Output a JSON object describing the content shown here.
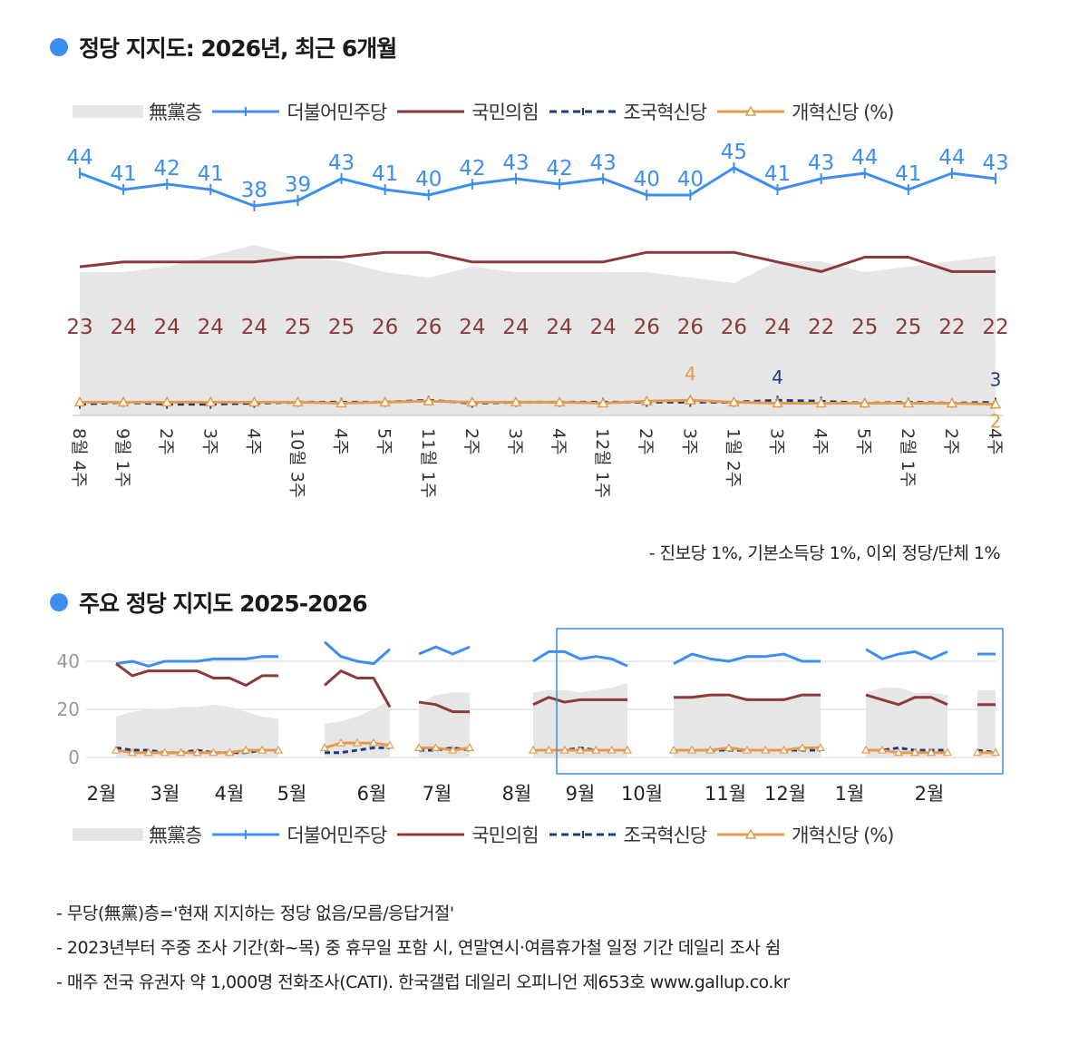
{
  "title1": "정당 지지도: 2026년, 최근 6개월",
  "title2": "주요 정당 지지도 2025-2026",
  "legend": {
    "none": "無黨층",
    "dem": "더불어민주당",
    "ppp": "국민의힘",
    "rebuild": "조국혁신당",
    "reform": "개혁신당 (%)"
  },
  "colors": {
    "dem": "#3c8ef0",
    "ppp": "#8b3a3a",
    "rebuild": "#1f3c7a",
    "reform": "#e69a4a",
    "none": "#e6e6e6"
  },
  "note_small": "- 진보당 1%, 기본소득당 1%, 이외 정당/단체 1%",
  "footnotes": [
    "- 무당(無黨)층='현재 지지하는 정당 없음/모름/응답거절'",
    "- 2023년부터 주중 조사 기간(화~목) 중 휴무일 포함 시, 연말연시·여름휴가철 일정 기간 데일리 조사 쉼",
    "- 매주 전국 유권자 약 1,000명 전화조사(CATI). 한국갤럽 데일리 오피니언 제653호 www.gallup.co.kr"
  ],
  "chart_data": [
    {
      "type": "line",
      "title": "정당 지지도: 2026년, 최근 6개월",
      "categories": [
        "8월 4주",
        "9월 1주",
        "2주",
        "3주",
        "4주",
        "10월 3주",
        "4주",
        "5주",
        "11월 1주",
        "2주",
        "3주",
        "4주",
        "12월 1주",
        "2주",
        "3주",
        "1월 2주",
        "3주",
        "4주",
        "5주",
        "2월 1주",
        "2주",
        "4주"
      ],
      "ylim": [
        0,
        50
      ],
      "series": [
        {
          "name": "더불어민주당",
          "values": [
            44,
            41,
            42,
            41,
            38,
            39,
            43,
            41,
            40,
            42,
            43,
            42,
            43,
            40,
            40,
            45,
            41,
            43,
            44,
            41,
            44,
            43
          ],
          "labeled": true
        },
        {
          "name": "국민의힘",
          "values": [
            23,
            24,
            24,
            24,
            24,
            25,
            25,
            26,
            26,
            24,
            24,
            24,
            24,
            26,
            26,
            26,
            24,
            22,
            25,
            25,
            22,
            22
          ],
          "labeled": true
        },
        {
          "name": "조국혁신당",
          "values": [
            2,
            3,
            2,
            2,
            2.5,
            3,
            3,
            3,
            4,
            2.5,
            3,
            3,
            3,
            3,
            3,
            3,
            4,
            3.5,
            2.5,
            3,
            2.5,
            3
          ],
          "labels": {
            "16": "4",
            "21": "3"
          }
        },
        {
          "name": "개혁신당",
          "values": [
            3,
            3,
            3,
            3,
            3,
            3,
            2.5,
            3,
            3.5,
            3,
            3,
            3,
            2.5,
            3.5,
            4,
            3,
            2.5,
            2.5,
            2.5,
            2.5,
            2.5,
            2
          ],
          "labels": {
            "14": "4",
            "21": "2"
          }
        },
        {
          "name": "無黨층",
          "values": [
            25,
            25,
            26,
            28,
            30,
            28,
            27,
            25,
            24,
            26,
            25,
            25,
            25,
            25,
            24,
            23,
            27,
            27,
            25,
            26,
            27,
            28
          ]
        }
      ]
    },
    {
      "type": "line",
      "title": "주요 정당 지지도 2025-2026",
      "x_labels": [
        "2월",
        "3월",
        "4월",
        "5월",
        "6월",
        "7월",
        "8월",
        "9월",
        "10월",
        "11월",
        "12월",
        "1월",
        "2월"
      ],
      "y_ticks": [
        "0",
        "20",
        "40"
      ],
      "ylim": [
        0,
        50
      ],
      "series": [
        {
          "name": "더불어민주당",
          "segments": [
            [
              39,
              40,
              38,
              40,
              40,
              40,
              41,
              41,
              41,
              42,
              42
            ],
            [
              48,
              42,
              40,
              39,
              45
            ],
            [
              43,
              46,
              43,
              46
            ],
            [
              40,
              44,
              44,
              41,
              42,
              41,
              38
            ],
            [
              39,
              43,
              41,
              40,
              42,
              42,
              43,
              40,
              40
            ],
            [
              45,
              41,
              43,
              44,
              41,
              44
            ],
            [
              43,
              43
            ]
          ]
        },
        {
          "name": "국민의힘",
          "segments": [
            [
              39,
              34,
              36,
              36,
              36,
              36,
              33,
              33,
              30,
              34,
              34
            ],
            [
              30,
              36,
              33,
              33,
              21
            ],
            [
              23,
              22,
              19,
              19
            ],
            [
              22,
              25,
              23,
              24,
              24,
              24,
              24
            ],
            [
              25,
              25,
              26,
              26,
              24,
              24,
              24,
              26,
              26
            ],
            [
              26,
              24,
              22,
              25,
              25,
              22
            ],
            [
              22,
              22
            ]
          ]
        },
        {
          "name": "조국혁신당",
          "segments": [
            [
              4,
              3,
              3,
              2,
              2,
              3,
              2,
              2,
              2,
              3,
              3
            ],
            [
              2,
              2,
              3,
              4,
              4
            ],
            [
              3,
              3,
              4,
              3
            ],
            [
              3,
              3,
              3,
              4,
              3,
              3,
              3
            ],
            [
              3,
              3,
              3,
              3,
              3,
              3,
              3,
              3,
              3
            ],
            [
              3,
              3,
              4,
              3,
              3,
              3
            ],
            [
              3,
              2
            ]
          ]
        },
        {
          "name": "개혁신당",
          "segments": [
            [
              3,
              2,
              2,
              2,
              2,
              2,
              2,
              2,
              3,
              3,
              3
            ],
            [
              4,
              6,
              6,
              6,
              5
            ],
            [
              4,
              4,
              3,
              4
            ],
            [
              3,
              3,
              3,
              3,
              3,
              3,
              3
            ],
            [
              3,
              3,
              3,
              4,
              3,
              3,
              3,
              4,
              4
            ],
            [
              3,
              3,
              2,
              2,
              2,
              2
            ],
            [
              2,
              2
            ]
          ]
        },
        {
          "name": "無黨층",
          "segments": [
            [
              17,
              19,
              20,
              20,
              21,
              21,
              22,
              21,
              19,
              17,
              16
            ],
            [
              14,
              15,
              17,
              20,
              24
            ],
            [
              22,
              26,
              27,
              27
            ],
            [
              27,
              28,
              28,
              27,
              28,
              29,
              31
            ],
            [
              25,
              26,
              26,
              25,
              25,
              24,
              25,
              26,
              26
            ],
            [
              27,
              29,
              29,
              27,
              27,
              26
            ],
            [
              28,
              28
            ]
          ]
        }
      ],
      "highlight": "최근 6개월 구간 (9월~2월)"
    }
  ]
}
